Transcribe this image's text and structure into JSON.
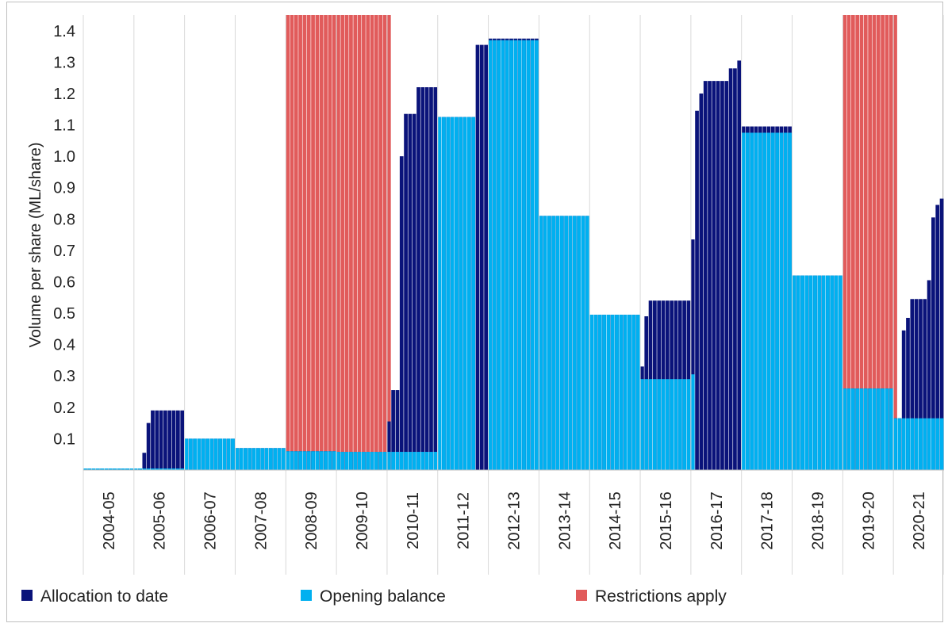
{
  "chart_data": {
    "type": "bar",
    "title": "",
    "xlabel": "",
    "ylabel": "Volume per share (ML/share)",
    "ylim": [
      0,
      1.45
    ],
    "yticks": [
      "0.1",
      "0.2",
      "0.3",
      "0.4",
      "0.5",
      "0.6",
      "0.7",
      "0.8",
      "0.9",
      "1.0",
      "1.1",
      "1.2",
      "1.3",
      "1.4"
    ],
    "categories": [
      "2004-05",
      "2005-06",
      "2006-07",
      "2007-08",
      "2008-09",
      "2009-10",
      "2010-11",
      "2011-12",
      "2012-13",
      "2013-14",
      "2014-15",
      "2015-16",
      "2016-17",
      "2017-18",
      "2018-19",
      "2019-20",
      "2020-21"
    ],
    "months_per_year": 12,
    "grid": "vertical gridlines between years",
    "legend_position": "bottom",
    "legend": [
      {
        "key": "allocation",
        "label": "Allocation to date",
        "color": "#0a137a"
      },
      {
        "key": "opening",
        "label": "Opening balance",
        "color": "#00b0f0"
      },
      {
        "key": "restrictions",
        "label": "Restrictions apply",
        "color": "#e15b5b"
      }
    ],
    "series": [
      {
        "name": "Opening balance",
        "values_by_year": [
          [
            0.005,
            0.005,
            0.005,
            0.005,
            0.005,
            0.005,
            0.005,
            0.005,
            0.005,
            0.005,
            0.005,
            0.005
          ],
          [
            0.005,
            0.005,
            0.005,
            0.005,
            0.005,
            0.005,
            0.005,
            0.005,
            0.005,
            0.005,
            0.005,
            0.005
          ],
          [
            0.1,
            0.1,
            0.1,
            0.1,
            0.1,
            0.1,
            0.1,
            0.1,
            0.1,
            0.1,
            0.1,
            0.1
          ],
          [
            0.07,
            0.07,
            0.07,
            0.07,
            0.07,
            0.07,
            0.07,
            0.07,
            0.07,
            0.07,
            0.07,
            0.07
          ],
          [
            0.06,
            0.06,
            0.06,
            0.06,
            0.06,
            0.06,
            0.06,
            0.06,
            0.06,
            0.06,
            0.06,
            0.06
          ],
          [
            0.058,
            0.058,
            0.058,
            0.058,
            0.058,
            0.058,
            0.058,
            0.058,
            0.058,
            0.058,
            0.058,
            0.058
          ],
          [
            0.058,
            0.058,
            0.058,
            0.058,
            0.058,
            0.058,
            0.058,
            0.058,
            0.058,
            0.058,
            0.058,
            0.058
          ],
          [
            1.125,
            1.125,
            1.125,
            1.125,
            1.125,
            1.125,
            1.125,
            1.125,
            1.125,
            0,
            0,
            0
          ],
          [
            1.37,
            1.37,
            1.37,
            1.37,
            1.37,
            1.37,
            1.37,
            1.37,
            1.37,
            1.37,
            1.37,
            1.37
          ],
          [
            0.81,
            0.81,
            0.81,
            0.81,
            0.81,
            0.81,
            0.81,
            0.81,
            0.81,
            0.81,
            0.81,
            0.81
          ],
          [
            0.495,
            0.495,
            0.495,
            0.495,
            0.495,
            0.495,
            0.495,
            0.495,
            0.495,
            0.495,
            0.495,
            0.495
          ],
          [
            0.29,
            0.29,
            0.29,
            0.29,
            0.29,
            0.29,
            0.29,
            0.29,
            0.29,
            0.29,
            0.29,
            0.29
          ],
          [
            0.305,
            0,
            0,
            0,
            0,
            0,
            0,
            0,
            0,
            0,
            0,
            0
          ],
          [
            1.075,
            1.075,
            1.075,
            1.075,
            1.075,
            1.075,
            1.075,
            1.075,
            1.075,
            1.075,
            1.075,
            1.075
          ],
          [
            0.62,
            0.62,
            0.62,
            0.62,
            0.62,
            0.62,
            0.62,
            0.62,
            0.62,
            0.62,
            0.62,
            0.62
          ],
          [
            0.26,
            0.26,
            0.26,
            0.26,
            0.26,
            0.26,
            0.26,
            0.26,
            0.26,
            0.26,
            0.26,
            0.26
          ],
          [
            0.165,
            0.165,
            0.165,
            0.165,
            0.165,
            0.165,
            0.165,
            0.165,
            0.165,
            0.165,
            0.165,
            0.165
          ]
        ]
      },
      {
        "name": "Allocation to date",
        "values_by_year": [
          [
            0.005,
            0.005,
            0.005,
            0.005,
            0.005,
            0.005,
            0.005,
            0.005,
            0.005,
            0.005,
            0.005,
            0.005
          ],
          [
            0.005,
            0.005,
            0.055,
            0.15,
            0.19,
            0.19,
            0.19,
            0.19,
            0.19,
            0.19,
            0.19,
            0.19
          ],
          [
            0.1,
            0.1,
            0.1,
            0.1,
            0.1,
            0.1,
            0.1,
            0.1,
            0.1,
            0.1,
            0.1,
            0.1
          ],
          [
            0.07,
            0.07,
            0.07,
            0.07,
            0.07,
            0.07,
            0.07,
            0.07,
            0.07,
            0.07,
            0.07,
            0.07
          ],
          [
            0.06,
            0.06,
            0.06,
            0.06,
            0.06,
            0.06,
            0.06,
            0.06,
            0.06,
            0.06,
            0.06,
            0.06
          ],
          [
            0.058,
            0.058,
            0.058,
            0.058,
            0.058,
            0.058,
            0.058,
            0.058,
            0.058,
            0.058,
            0.058,
            0.058
          ],
          [
            0.155,
            0.255,
            0.255,
            1.0,
            1.135,
            1.135,
            1.135,
            1.22,
            1.22,
            1.22,
            1.22,
            1.22
          ],
          [
            1.125,
            1.125,
            1.125,
            1.125,
            1.125,
            1.125,
            1.125,
            1.125,
            1.125,
            1.355,
            1.355,
            1.355
          ],
          [
            1.375,
            1.375,
            1.375,
            1.375,
            1.375,
            1.375,
            1.375,
            1.375,
            1.375,
            1.375,
            1.375,
            1.375
          ],
          [
            0.81,
            0.81,
            0.81,
            0.81,
            0.81,
            0.81,
            0.81,
            0.81,
            0.81,
            0.81,
            0.81,
            0.81
          ],
          [
            0.495,
            0.495,
            0.495,
            0.495,
            0.495,
            0.495,
            0.495,
            0.495,
            0.495,
            0.495,
            0.495,
            0.495
          ],
          [
            0.33,
            0.49,
            0.54,
            0.54,
            0.54,
            0.54,
            0.54,
            0.54,
            0.54,
            0.54,
            0.54,
            0.54
          ],
          [
            0.735,
            1.145,
            1.2,
            1.24,
            1.24,
            1.24,
            1.24,
            1.24,
            1.24,
            1.28,
            1.28,
            1.305
          ],
          [
            1.095,
            1.095,
            1.095,
            1.095,
            1.095,
            1.095,
            1.095,
            1.095,
            1.095,
            1.095,
            1.095,
            1.095
          ],
          [
            0.62,
            0.62,
            0.62,
            0.62,
            0.62,
            0.62,
            0.62,
            0.62,
            0.62,
            0.62,
            0.62,
            0.62
          ],
          [
            0.26,
            0.26,
            0.26,
            0.26,
            0.26,
            0.26,
            0.26,
            0.26,
            0.26,
            0.26,
            0.26,
            0.26
          ],
          [
            0.165,
            0.165,
            0.445,
            0.485,
            0.545,
            0.545,
            0.545,
            0.545,
            0.605,
            0.805,
            0.845,
            0.865
          ]
        ]
      },
      {
        "name": "Restrictions apply",
        "values_by_year": [
          [
            0,
            0,
            0,
            0,
            0,
            0,
            0,
            0,
            0,
            0,
            0,
            0
          ],
          [
            0,
            0,
            0,
            0,
            0,
            0,
            0,
            0,
            0,
            0,
            0,
            0
          ],
          [
            0,
            0,
            0,
            0,
            0,
            0,
            0,
            0,
            0,
            0,
            0,
            0
          ],
          [
            0,
            0,
            0,
            0,
            0,
            0,
            0,
            0,
            0,
            0,
            0,
            0
          ],
          [
            1.45,
            1.45,
            1.45,
            1.45,
            1.45,
            1.45,
            1.45,
            1.45,
            1.45,
            1.45,
            1.45,
            1.45
          ],
          [
            1.45,
            1.45,
            1.45,
            1.45,
            1.45,
            1.45,
            1.45,
            1.45,
            1.45,
            1.45,
            1.45,
            1.45
          ],
          [
            1.45,
            0,
            0,
            0,
            0,
            0,
            0,
            0,
            0,
            0,
            0,
            0
          ],
          [
            0,
            0,
            0,
            0,
            0,
            0,
            0,
            0,
            0,
            0,
            0,
            0
          ],
          [
            0,
            0,
            0,
            0,
            0,
            0,
            0,
            0,
            0,
            0,
            0,
            0
          ],
          [
            0,
            0,
            0,
            0,
            0,
            0,
            0,
            0,
            0,
            0,
            0,
            0
          ],
          [
            0,
            0,
            0,
            0,
            0,
            0,
            0,
            0,
            0,
            0,
            0,
            0
          ],
          [
            0,
            0,
            0,
            0,
            0,
            0,
            0,
            0,
            0,
            0,
            0,
            0
          ],
          [
            0,
            0,
            0,
            0,
            0,
            0,
            0,
            0,
            0,
            0,
            0,
            0
          ],
          [
            0,
            0,
            0,
            0,
            0,
            0,
            0,
            0,
            0,
            0,
            0,
            0
          ],
          [
            0,
            0,
            0,
            0,
            0,
            0,
            0,
            0,
            0,
            0,
            0,
            0
          ],
          [
            1.45,
            1.45,
            1.45,
            1.45,
            1.45,
            1.45,
            1.45,
            1.45,
            1.45,
            1.45,
            1.45,
            1.45
          ],
          [
            1.45,
            0,
            0,
            0,
            0,
            0,
            0,
            0,
            0,
            0,
            0,
            0
          ]
        ]
      }
    ]
  }
}
